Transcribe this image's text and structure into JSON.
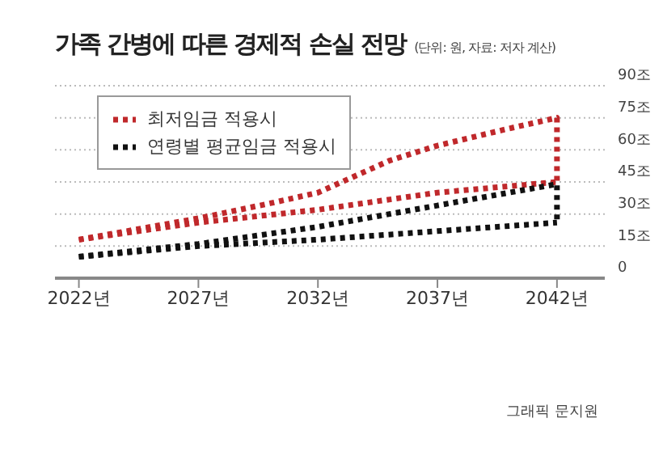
{
  "chart_data": {
    "type": "line",
    "title": "가족 간병에 따른 경제적 손실 전망",
    "subtitle": "(단위: 원, 자료: 저자 계산)",
    "xlim": [
      2021,
      2044
    ],
    "xticks": [
      {
        "value": 2022,
        "label": "2022년"
      },
      {
        "value": 2027,
        "label": "2027년"
      },
      {
        "value": 2032,
        "label": "2032년"
      },
      {
        "value": 2037,
        "label": "2037년"
      },
      {
        "value": 2042,
        "label": "2042년"
      }
    ],
    "ylim": [
      0,
      90
    ],
    "yticks": [
      {
        "value": 0,
        "label": "0"
      },
      {
        "value": 15,
        "label": "15조"
      },
      {
        "value": 30,
        "label": "30조"
      },
      {
        "value": 45,
        "label": "45조"
      },
      {
        "value": 60,
        "label": "60조"
      },
      {
        "value": 75,
        "label": "75조"
      },
      {
        "value": 90,
        "label": "90조"
      }
    ],
    "grid": "y",
    "legend": "top left",
    "line_style": "dotted",
    "marker": "none",
    "series": [
      {
        "name": "최저임금 적용시",
        "color": "#c0282b",
        "x": [
          2022,
          2027,
          2030,
          2032,
          2035,
          2037,
          2040,
          2042,
          2042
        ],
        "values": [
          18,
          28,
          35,
          40,
          55,
          62,
          70,
          75,
          45
        ]
      },
      {
        "color": "#c0282b",
        "x": [
          2022,
          2027,
          2032,
          2037,
          2042
        ],
        "values": [
          18,
          26,
          32,
          40,
          45
        ]
      },
      {
        "name": "연령별 평균임금 적용시",
        "color": "#111111",
        "x": [
          2022,
          2027,
          2032,
          2035,
          2037,
          2042,
          2042
        ],
        "values": [
          10,
          16,
          24,
          30,
          34,
          44,
          26
        ]
      },
      {
        "color": "#111111",
        "x": [
          2022,
          2027,
          2032,
          2037,
          2042
        ],
        "values": [
          10,
          15,
          18,
          22,
          26
        ]
      }
    ],
    "annotations": [
      "그래픽 문지원"
    ]
  }
}
